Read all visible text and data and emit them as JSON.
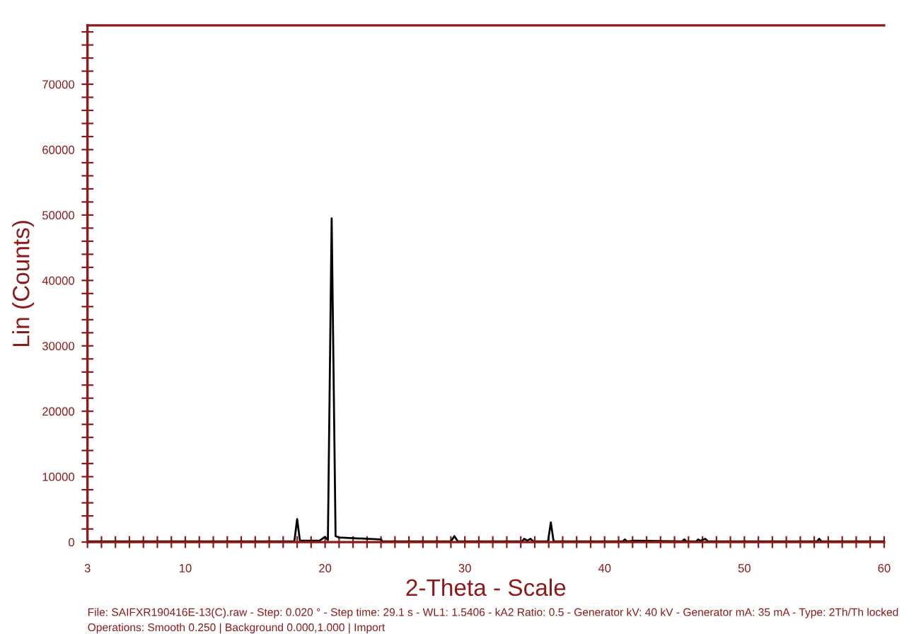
{
  "chart_data": {
    "type": "line",
    "xlabel": "2-Theta - Scale",
    "ylabel": "Lin (Counts)",
    "series": [
      {
        "color": "#000000",
        "x": [
          3,
          17.8,
          18.0,
          18.2,
          19.6,
          20.0,
          20.2,
          20.47,
          20.75,
          21.0,
          24.0,
          24.1,
          29.0,
          29.25,
          29.5,
          34.1,
          34.25,
          34.45,
          34.7,
          34.9,
          35.95,
          36.15,
          36.35,
          41.3,
          41.45,
          41.6,
          42.15,
          45.55,
          45.7,
          45.85,
          46.55,
          46.7,
          46.85,
          47.2,
          47.4,
          55.2,
          55.35,
          55.5,
          60
        ],
        "values": [
          100,
          100,
          3500,
          200,
          200,
          800,
          300,
          49500,
          900,
          700,
          400,
          100,
          100,
          900,
          100,
          100,
          500,
          200,
          500,
          100,
          100,
          3000,
          100,
          100,
          400,
          100,
          200,
          100,
          400,
          100,
          100,
          400,
          200,
          500,
          100,
          100,
          500,
          100,
          100
        ]
      }
    ],
    "xlim": [
      3,
      60
    ],
    "ylim": [
      0,
      79000
    ],
    "xticks": [
      3,
      {
        "value": 4,
        "label": null
      },
      {
        "value": 5,
        "label": null
      },
      {
        "value": 6,
        "label": null
      },
      {
        "value": 7,
        "label": null
      },
      {
        "value": 8,
        "label": null
      },
      {
        "value": 9,
        "label": null
      },
      10,
      {
        "value": 11,
        "label": null
      },
      {
        "value": 12,
        "label": null
      },
      {
        "value": 13,
        "label": null
      },
      {
        "value": 14,
        "label": null
      },
      {
        "value": 15,
        "label": null
      },
      {
        "value": 16,
        "label": null
      },
      {
        "value": 17,
        "label": null
      },
      {
        "value": 18,
        "label": null
      },
      {
        "value": 19,
        "label": null
      },
      20,
      {
        "value": 21,
        "label": null
      },
      {
        "value": 22,
        "label": null
      },
      {
        "value": 23,
        "label": null
      },
      {
        "value": 24,
        "label": null
      },
      {
        "value": 25,
        "label": null
      },
      {
        "value": 26,
        "label": null
      },
      {
        "value": 27,
        "label": null
      },
      {
        "value": 28,
        "label": null
      },
      {
        "value": 29,
        "label": null
      },
      30,
      {
        "value": 31,
        "label": null
      },
      {
        "value": 32,
        "label": null
      },
      {
        "value": 33,
        "label": null
      },
      {
        "value": 34,
        "label": null
      },
      {
        "value": 35,
        "label": null
      },
      {
        "value": 36,
        "label": null
      },
      {
        "value": 37,
        "label": null
      },
      {
        "value": 38,
        "label": null
      },
      {
        "value": 39,
        "label": null
      },
      40,
      {
        "value": 41,
        "label": null
      },
      {
        "value": 42,
        "label": null
      },
      {
        "value": 43,
        "label": null
      },
      {
        "value": 44,
        "label": null
      },
      {
        "value": 45,
        "label": null
      },
      {
        "value": 46,
        "label": null
      },
      {
        "value": 47,
        "label": null
      },
      {
        "value": 48,
        "label": null
      },
      {
        "value": 49,
        "label": null
      },
      50,
      {
        "value": 51,
        "label": null
      },
      {
        "value": 52,
        "label": null
      },
      {
        "value": 53,
        "label": null
      },
      {
        "value": 54,
        "label": null
      },
      {
        "value": 55,
        "label": null
      },
      {
        "value": 56,
        "label": null
      },
      {
        "value": 57,
        "label": null
      },
      {
        "value": 58,
        "label": null
      },
      {
        "value": 59,
        "label": null
      },
      60
    ],
    "yticks": [
      0,
      {
        "value": 2000,
        "label": null
      },
      {
        "value": 4000,
        "label": null
      },
      {
        "value": 6000,
        "label": null
      },
      {
        "value": 8000,
        "label": null
      },
      10000,
      {
        "value": 12000,
        "label": null
      },
      {
        "value": 14000,
        "label": null
      },
      {
        "value": 16000,
        "label": null
      },
      {
        "value": 18000,
        "label": null
      },
      20000,
      {
        "value": 22000,
        "label": null
      },
      {
        "value": 24000,
        "label": null
      },
      {
        "value": 26000,
        "label": null
      },
      {
        "value": 28000,
        "label": null
      },
      30000,
      {
        "value": 32000,
        "label": null
      },
      {
        "value": 34000,
        "label": null
      },
      {
        "value": 36000,
        "label": null
      },
      {
        "value": 38000,
        "label": null
      },
      40000,
      {
        "value": 42000,
        "label": null
      },
      {
        "value": 44000,
        "label": null
      },
      {
        "value": 46000,
        "label": null
      },
      {
        "value": 48000,
        "label": null
      },
      50000,
      {
        "value": 52000,
        "label": null
      },
      {
        "value": 54000,
        "label": null
      },
      {
        "value": 56000,
        "label": null
      },
      {
        "value": 58000,
        "label": null
      },
      60000,
      {
        "value": 62000,
        "label": null
      },
      {
        "value": 64000,
        "label": null
      },
      {
        "value": 66000,
        "label": null
      },
      {
        "value": 68000,
        "label": null
      },
      70000,
      {
        "value": 72000,
        "label": null
      },
      {
        "value": 74000,
        "label": null
      },
      {
        "value": 76000,
        "label": null
      },
      {
        "value": 78000,
        "label": null
      }
    ],
    "grid": false,
    "line_style": "solid",
    "marker": "none",
    "annotations": [
      "File: SAIFXR190416E-13(C).raw - Step: 0.020 ° - Step time: 29.1 s - WL1: 1.5406 - kA2 Ratio: 0.5 - Generator kV: 40 kV - Generator mA: 35 mA - Type: 2Th/Th locked",
      "Operations: Smooth 0.250 | Background 0.000,1.000 | Import"
    ]
  }
}
